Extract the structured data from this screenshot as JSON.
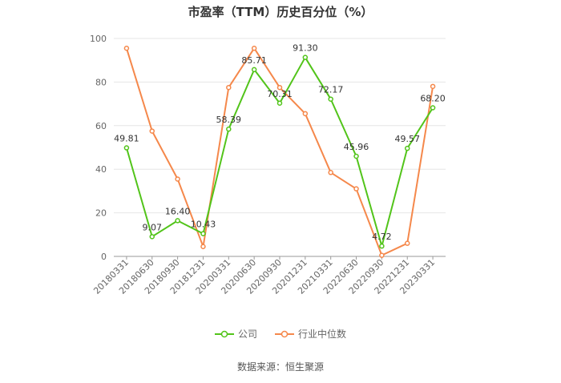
{
  "chart_data": {
    "type": "line",
    "title": "市盈率（TTM）历史百分位（%）",
    "categories": [
      "20180331",
      "20180630",
      "20180930",
      "20181231",
      "20200331",
      "20200630",
      "20200930",
      "20201231",
      "20210331",
      "20220630",
      "20220930",
      "20221231",
      "20230331"
    ],
    "series": [
      {
        "name": "公司",
        "values": [
          49.81,
          9.07,
          16.4,
          10.43,
          58.39,
          85.71,
          70.31,
          91.3,
          72.17,
          45.96,
          4.72,
          49.57,
          68.2
        ],
        "color": "#52c41a",
        "show_labels": true
      },
      {
        "name": "行业中位数",
        "values": [
          95.5,
          57.5,
          35.5,
          4.5,
          77.5,
          95.5,
          77.5,
          65.5,
          38.5,
          31.0,
          0.5,
          6.0,
          78.0
        ],
        "color": "#f5884b",
        "show_labels": false
      }
    ],
    "yticks": [
      "0",
      "20",
      "40",
      "60",
      "80",
      "100"
    ],
    "ylim": [
      0,
      100
    ],
    "grid": true,
    "legend_position": "bottom"
  },
  "source_text": "数据来源：恒生聚源"
}
